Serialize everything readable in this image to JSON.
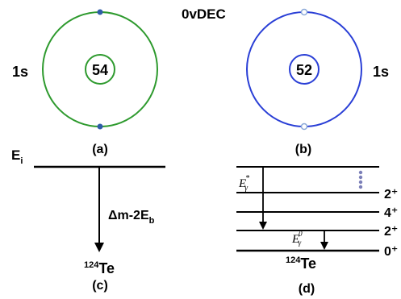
{
  "title": "0vDEC",
  "atoms": [
    {
      "shell_label": "1s",
      "nucleus_label": "54",
      "panel_label": "(a)",
      "ring_color": "#2e9a2e",
      "electron_color": "#2f5da8"
    },
    {
      "shell_label": "1s",
      "nucleus_label": "52",
      "panel_label": "(b)",
      "ring_color": "#2a3fd6",
      "hole_color": "#8aa8d8"
    }
  ],
  "panel_c": {
    "level_label": "E",
    "level_label_sub": "i",
    "transition_label": "Δm-2E",
    "transition_label_sub": "b",
    "final_nucleus_mass": "124",
    "final_nucleus_symbol": "Te",
    "panel_label": "(c)"
  },
  "panel_d": {
    "gamma_star_base": "E",
    "gamma_star_sub": "γ",
    "gamma_star_sup": "*",
    "gamma_zero_base": "E",
    "gamma_zero_sub": "γ",
    "gamma_zero_sup": "0",
    "levels": [
      "2⁺",
      "4⁺",
      "2⁺",
      "0⁺"
    ],
    "final_nucleus_mass": "124",
    "final_nucleus_symbol": "Te",
    "panel_label": "(d)",
    "dots_color": "#7b7fb8"
  }
}
